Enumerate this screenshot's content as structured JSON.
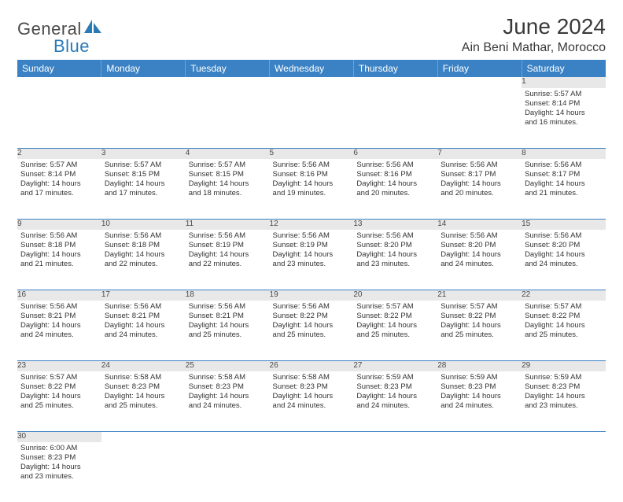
{
  "brand": {
    "part1": "General",
    "part2": "Blue",
    "icon_color": "#2a7ab8"
  },
  "title": "June 2024",
  "location": "Ain Beni Mathar, Morocco",
  "colors": {
    "header_bg": "#3b82c4",
    "header_text": "#ffffff",
    "daynum_bg": "#e8e8e8",
    "rule": "#3b82c4",
    "text": "#333333"
  },
  "weekdays": [
    "Sunday",
    "Monday",
    "Tuesday",
    "Wednesday",
    "Thursday",
    "Friday",
    "Saturday"
  ],
  "weeks": [
    [
      null,
      null,
      null,
      null,
      null,
      null,
      {
        "n": "1",
        "sr": "5:57 AM",
        "ss": "8:14 PM",
        "dl": "14 hours and 16 minutes."
      }
    ],
    [
      {
        "n": "2",
        "sr": "5:57 AM",
        "ss": "8:14 PM",
        "dl": "14 hours and 17 minutes."
      },
      {
        "n": "3",
        "sr": "5:57 AM",
        "ss": "8:15 PM",
        "dl": "14 hours and 17 minutes."
      },
      {
        "n": "4",
        "sr": "5:57 AM",
        "ss": "8:15 PM",
        "dl": "14 hours and 18 minutes."
      },
      {
        "n": "5",
        "sr": "5:56 AM",
        "ss": "8:16 PM",
        "dl": "14 hours and 19 minutes."
      },
      {
        "n": "6",
        "sr": "5:56 AM",
        "ss": "8:16 PM",
        "dl": "14 hours and 20 minutes."
      },
      {
        "n": "7",
        "sr": "5:56 AM",
        "ss": "8:17 PM",
        "dl": "14 hours and 20 minutes."
      },
      {
        "n": "8",
        "sr": "5:56 AM",
        "ss": "8:17 PM",
        "dl": "14 hours and 21 minutes."
      }
    ],
    [
      {
        "n": "9",
        "sr": "5:56 AM",
        "ss": "8:18 PM",
        "dl": "14 hours and 21 minutes."
      },
      {
        "n": "10",
        "sr": "5:56 AM",
        "ss": "8:18 PM",
        "dl": "14 hours and 22 minutes."
      },
      {
        "n": "11",
        "sr": "5:56 AM",
        "ss": "8:19 PM",
        "dl": "14 hours and 22 minutes."
      },
      {
        "n": "12",
        "sr": "5:56 AM",
        "ss": "8:19 PM",
        "dl": "14 hours and 23 minutes."
      },
      {
        "n": "13",
        "sr": "5:56 AM",
        "ss": "8:20 PM",
        "dl": "14 hours and 23 minutes."
      },
      {
        "n": "14",
        "sr": "5:56 AM",
        "ss": "8:20 PM",
        "dl": "14 hours and 24 minutes."
      },
      {
        "n": "15",
        "sr": "5:56 AM",
        "ss": "8:20 PM",
        "dl": "14 hours and 24 minutes."
      }
    ],
    [
      {
        "n": "16",
        "sr": "5:56 AM",
        "ss": "8:21 PM",
        "dl": "14 hours and 24 minutes."
      },
      {
        "n": "17",
        "sr": "5:56 AM",
        "ss": "8:21 PM",
        "dl": "14 hours and 24 minutes."
      },
      {
        "n": "18",
        "sr": "5:56 AM",
        "ss": "8:21 PM",
        "dl": "14 hours and 25 minutes."
      },
      {
        "n": "19",
        "sr": "5:56 AM",
        "ss": "8:22 PM",
        "dl": "14 hours and 25 minutes."
      },
      {
        "n": "20",
        "sr": "5:57 AM",
        "ss": "8:22 PM",
        "dl": "14 hours and 25 minutes."
      },
      {
        "n": "21",
        "sr": "5:57 AM",
        "ss": "8:22 PM",
        "dl": "14 hours and 25 minutes."
      },
      {
        "n": "22",
        "sr": "5:57 AM",
        "ss": "8:22 PM",
        "dl": "14 hours and 25 minutes."
      }
    ],
    [
      {
        "n": "23",
        "sr": "5:57 AM",
        "ss": "8:22 PM",
        "dl": "14 hours and 25 minutes."
      },
      {
        "n": "24",
        "sr": "5:58 AM",
        "ss": "8:23 PM",
        "dl": "14 hours and 25 minutes."
      },
      {
        "n": "25",
        "sr": "5:58 AM",
        "ss": "8:23 PM",
        "dl": "14 hours and 24 minutes."
      },
      {
        "n": "26",
        "sr": "5:58 AM",
        "ss": "8:23 PM",
        "dl": "14 hours and 24 minutes."
      },
      {
        "n": "27",
        "sr": "5:59 AM",
        "ss": "8:23 PM",
        "dl": "14 hours and 24 minutes."
      },
      {
        "n": "28",
        "sr": "5:59 AM",
        "ss": "8:23 PM",
        "dl": "14 hours and 24 minutes."
      },
      {
        "n": "29",
        "sr": "5:59 AM",
        "ss": "8:23 PM",
        "dl": "14 hours and 23 minutes."
      }
    ],
    [
      {
        "n": "30",
        "sr": "6:00 AM",
        "ss": "8:23 PM",
        "dl": "14 hours and 23 minutes."
      },
      null,
      null,
      null,
      null,
      null,
      null
    ]
  ],
  "labels": {
    "sunrise": "Sunrise: ",
    "sunset": "Sunset: ",
    "daylight": "Daylight: "
  }
}
